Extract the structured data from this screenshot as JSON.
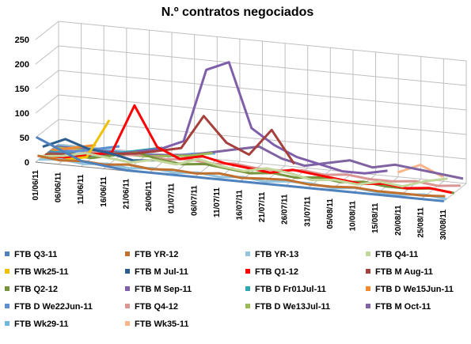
{
  "chart_data": {
    "type": "line3d",
    "title": "N.º contratos negociados",
    "categories": [
      "01/06/11",
      "06/06/11",
      "11/06/11",
      "16/06/11",
      "21/06/11",
      "26/06/11",
      "01/07/11",
      "06/07/11",
      "11/07/11",
      "16/07/11",
      "21/07/11",
      "26/07/11",
      "31/07/11",
      "05/08/11",
      "10/08/11",
      "15/08/11",
      "20/08/11",
      "25/08/11",
      "30/08/11"
    ],
    "ylim": [
      0,
      250
    ],
    "yticks": [
      0,
      50,
      100,
      150,
      200,
      250
    ],
    "grid": true,
    "series": [
      {
        "name": "FTB Q3-11",
        "color": "#4f81bd",
        "values": [
          50,
          30,
          10,
          5,
          0,
          0,
          0,
          0,
          0,
          0,
          0,
          0,
          0,
          0,
          0,
          0,
          0,
          0,
          0
        ]
      },
      {
        "name": "FTB YR-12",
        "color": "#c0712f",
        "values": [
          10,
          5,
          8,
          5,
          10,
          5,
          8,
          5,
          10,
          5,
          8,
          10,
          5,
          5,
          8,
          5,
          5,
          5,
          8
        ]
      },
      {
        "name": "FTB YR-13",
        "color": "#93c5de",
        "values": [
          0,
          5,
          0,
          5,
          0,
          5,
          0,
          5,
          0,
          5,
          0,
          5,
          5,
          0,
          5,
          0,
          0,
          5,
          0
        ]
      },
      {
        "name": "FTB Q4-11",
        "color": "#c3d69b",
        "values": [
          5,
          10,
          20,
          15,
          10,
          20,
          15,
          30,
          20,
          15,
          25,
          20,
          10,
          15,
          10,
          20,
          15,
          30,
          40
        ]
      },
      {
        "name": "FTB Wk25-11",
        "color": "#f0c000",
        "values": [
          0,
          0,
          10,
          90,
          null,
          null,
          null,
          null,
          null,
          null,
          null,
          null,
          null,
          null,
          null,
          null,
          null,
          null,
          null
        ]
      },
      {
        "name": "FTB M Jul-11",
        "color": "#2c5d8f",
        "values": [
          20,
          40,
          25,
          20,
          10,
          15,
          null,
          null,
          null,
          null,
          null,
          null,
          null,
          null,
          null,
          null,
          null,
          null,
          null
        ]
      },
      {
        "name": "FTB Q1-12",
        "color": "#ff0000",
        "values": [
          0,
          0,
          10,
          20,
          120,
          40,
          20,
          30,
          20,
          15,
          10,
          20,
          15,
          10,
          5,
          10,
          5,
          10,
          5
        ]
      },
      {
        "name": "FTB M Aug-11",
        "color": "#a5403d",
        "values": [
          0,
          5,
          10,
          15,
          20,
          30,
          40,
          110,
          60,
          40,
          95,
          30,
          null,
          null,
          null,
          null,
          null,
          null,
          null
        ]
      },
      {
        "name": "FTB Q2-12",
        "color": "#77933c",
        "values": [
          0,
          0,
          0,
          10,
          20,
          10,
          5,
          10,
          5,
          0,
          5,
          0,
          5,
          0,
          5,
          0,
          0,
          5,
          0
        ]
      },
      {
        "name": "FTB M Sep-11",
        "color": "#7f5fa9",
        "values": [
          0,
          0,
          5,
          10,
          20,
          30,
          50,
          200,
          220,
          90,
          60,
          40,
          30,
          20,
          20,
          30,
          null,
          null,
          null
        ]
      },
      {
        "name": "FTB D Fr01Jul-11",
        "color": "#31a5b0",
        "values": [
          0,
          0,
          0,
          10,
          20,
          30,
          null,
          null,
          null,
          null,
          null,
          null,
          null,
          null,
          null,
          null,
          null,
          null,
          null
        ]
      },
      {
        "name": "FTB D We15Jun-11",
        "color": "#f08a30",
        "values": [
          0,
          10,
          20,
          null,
          null,
          null,
          null,
          null,
          null,
          null,
          null,
          null,
          null,
          null,
          null,
          null,
          null,
          null,
          null
        ]
      },
      {
        "name": "FTB D We22Jun-11",
        "color": "#5b8fd0",
        "values": [
          0,
          0,
          10,
          20,
          null,
          null,
          null,
          null,
          null,
          null,
          null,
          null,
          null,
          null,
          null,
          null,
          null,
          null,
          null
        ]
      },
      {
        "name": "FTB Q4-12",
        "color": "#d99694",
        "values": [
          0,
          0,
          0,
          0,
          5,
          0,
          5,
          0,
          5,
          0,
          0,
          5,
          0,
          5,
          0,
          0,
          5,
          0,
          5
        ]
      },
      {
        "name": "FTB D We13Jul-11",
        "color": "#9bbb59",
        "values": [
          0,
          0,
          0,
          0,
          0,
          5,
          10,
          20,
          null,
          null,
          null,
          null,
          null,
          null,
          null,
          null,
          null,
          null,
          null
        ]
      },
      {
        "name": "FTB M Oct-11",
        "color": "#8064a2",
        "values": [
          0,
          0,
          0,
          0,
          0,
          5,
          10,
          20,
          30,
          40,
          20,
          10,
          20,
          30,
          20,
          30,
          25,
          20,
          15
        ]
      },
      {
        "name": "FTB Wk29-11",
        "color": "#6fb8e0",
        "values": [
          0,
          0,
          0,
          0,
          0,
          0,
          10,
          15,
          null,
          null,
          null,
          null,
          null,
          null,
          null,
          null,
          null,
          null,
          null
        ]
      },
      {
        "name": "FTB Wk35-11",
        "color": "#fab58a",
        "values": [
          null,
          null,
          null,
          null,
          null,
          null,
          null,
          null,
          null,
          null,
          null,
          null,
          null,
          null,
          null,
          10,
          30,
          10,
          null
        ]
      }
    ]
  }
}
